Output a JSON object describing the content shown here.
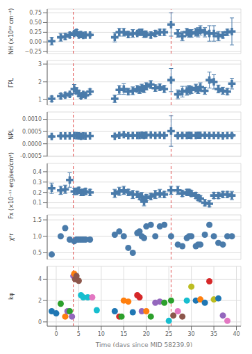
{
  "chart_data": [
    {
      "type": "scatter",
      "ylabel": "NH (×10²² cm⁻²)",
      "marker": "plus",
      "color": "#4a7baa",
      "grid": true,
      "tick_labels": "y",
      "xlim": [
        -2,
        41
      ],
      "xticks": [
        0,
        5,
        10,
        15,
        20,
        25,
        30,
        35,
        40
      ],
      "ylim": [
        -0.3,
        0.85
      ],
      "yticks": [
        {
          "value": -0.25,
          "label": "−0.25"
        },
        {
          "value": 0,
          "label": "0.00"
        },
        0.25,
        {
          "value": 0.5,
          "label": "0.50"
        },
        0.75
      ],
      "vlines": {
        "x": [
          3.8,
          25.5
        ],
        "color": "#e05050",
        "line_style": "dashed"
      },
      "x": [
        -1,
        1,
        2,
        3,
        4,
        4.5,
        5,
        5.5,
        6,
        6.5,
        7.5,
        13,
        14,
        15,
        16,
        17,
        18,
        18.5,
        19,
        19.5,
        20,
        21,
        22,
        23,
        24,
        25.5,
        27,
        28,
        29,
        29.5,
        30,
        31,
        31.5,
        32,
        33,
        34,
        35,
        36,
        37,
        38,
        39
      ],
      "values": [
        0.02,
        0.12,
        0.14,
        0.18,
        0.22,
        0.25,
        0.18,
        0.19,
        0.17,
        0.18,
        0.18,
        0.12,
        0.25,
        0.25,
        0.19,
        0.22,
        0.22,
        0.25,
        0.25,
        0.2,
        0.2,
        0.18,
        0.22,
        0.25,
        0.25,
        0.45,
        0.22,
        0.15,
        0.25,
        0.22,
        0.22,
        0.25,
        0.25,
        0.3,
        0.25,
        0.22,
        0.22,
        0.15,
        0.18,
        0.25,
        0.27
      ],
      "yerr": [
        0.1,
        0.1,
        0.08,
        0.06,
        0.05,
        0.07,
        0.04,
        0.04,
        0.04,
        0.03,
        0.03,
        0.12,
        0.1,
        0.1,
        0.08,
        0.1,
        0.05,
        0.07,
        0.08,
        0.08,
        0.05,
        0.08,
        0.08,
        0.08,
        0.08,
        0.3,
        0.1,
        0.12,
        0.1,
        0.1,
        0.1,
        0.1,
        0.12,
        0.12,
        0.12,
        0.2,
        0.2,
        0.12,
        0.08,
        0.08,
        0.35
      ]
    },
    {
      "type": "scatter",
      "ylabel": "ΓPL",
      "marker": "plus",
      "color": "#4a7baa",
      "grid": true,
      "tick_labels": "y",
      "xlim": [
        -2,
        41
      ],
      "xticks": [
        0,
        5,
        10,
        15,
        20,
        25,
        30,
        35,
        40
      ],
      "ylim": [
        0.7,
        3.2
      ],
      "yticks": [
        1,
        2,
        3
      ],
      "vlines": {
        "x": [
          3.8,
          25.5
        ],
        "color": "#e05050",
        "line_style": "dashed"
      },
      "x": [
        -1,
        1,
        2,
        3,
        4,
        4.5,
        5,
        5.5,
        6,
        6.5,
        7.5,
        13,
        14,
        15,
        16,
        17,
        18,
        18.5,
        19,
        19.5,
        20,
        21,
        22,
        23,
        24,
        25.5,
        27,
        28,
        29,
        29.5,
        30,
        31,
        31.5,
        32,
        33,
        34,
        35,
        36,
        37,
        38,
        39
      ],
      "values": [
        1.05,
        1.2,
        1.25,
        1.3,
        1.6,
        1.5,
        1.35,
        1.2,
        1.3,
        1.25,
        1.45,
        1.05,
        1.55,
        1.6,
        1.45,
        1.5,
        1.6,
        1.55,
        1.65,
        1.6,
        1.75,
        1.85,
        1.65,
        1.7,
        1.6,
        2.1,
        1.3,
        1.45,
        1.5,
        1.55,
        1.55,
        1.65,
        1.55,
        1.7,
        1.5,
        2.1,
        2.0,
        1.6,
        1.5,
        1.45,
        1.9
      ],
      "yerr": [
        0.15,
        0.15,
        0.12,
        0.12,
        0.25,
        0.18,
        0.15,
        0.12,
        0.12,
        0.1,
        0.15,
        0.2,
        0.25,
        0.3,
        0.18,
        0.22,
        0.18,
        0.2,
        0.22,
        0.2,
        0.2,
        0.22,
        0.18,
        0.18,
        0.2,
        0.65,
        0.25,
        0.3,
        0.25,
        0.25,
        0.2,
        0.22,
        0.2,
        0.25,
        0.2,
        0.45,
        0.4,
        0.22,
        0.2,
        0.18,
        0.3
      ]
    },
    {
      "type": "scatter",
      "ylabel": "NPL",
      "marker": "plus",
      "color": "#4a7baa",
      "grid": true,
      "tick_labels": "y",
      "xlim": [
        -2,
        41
      ],
      "xticks": [
        0,
        5,
        10,
        15,
        20,
        25,
        30,
        35,
        40
      ],
      "ylim": [
        -0.00052,
        0.0013
      ],
      "yticks": [
        {
          "value": -0.0005,
          "label": "-0.0005"
        },
        {
          "value": 0,
          "label": "0.0000"
        },
        {
          "value": 0.0005,
          "label": "0.0005"
        },
        {
          "value": 0.001,
          "label": "0.0010"
        }
      ],
      "vlines": {
        "x": [
          3.8,
          25.5
        ],
        "color": "#e05050",
        "line_style": "dashed"
      },
      "x": [
        -1,
        1,
        2,
        3,
        4,
        4.5,
        5,
        5.5,
        6,
        6.5,
        7.5,
        13,
        14,
        15,
        16,
        17,
        18,
        18.5,
        19,
        19.5,
        20,
        21,
        22,
        23,
        24,
        25.5,
        27,
        28,
        29,
        29.5,
        30,
        31,
        31.5,
        32,
        33,
        34,
        35,
        36,
        37,
        38,
        39
      ],
      "values": [
        0.0003,
        0.00032,
        0.00032,
        0.00032,
        0.000335,
        0.00033,
        0.000325,
        0.00031,
        0.00032,
        0.000315,
        0.00032,
        0.00031,
        0.000345,
        0.00037,
        0.00033,
        0.00034,
        0.00034,
        0.00034,
        0.00035,
        0.00034,
        0.00035,
        0.000355,
        0.00034,
        0.00035,
        0.00034,
        0.00052,
        0.00033,
        0.00034,
        0.00034,
        0.000345,
        0.00034,
        0.00034,
        0.000345,
        0.000345,
        0.000345,
        0.00034,
        0.000335,
        0.00034,
        0.00032,
        0.000335,
        0.00034
      ],
      "yerr": [
        5e-05,
        4e-05,
        3.5e-05,
        3e-05,
        3.5e-05,
        3e-05,
        2.5e-05,
        2.5e-05,
        2.5e-05,
        2.5e-05,
        2.5e-05,
        4.5e-05,
        4e-05,
        5e-05,
        3.5e-05,
        4.5e-05,
        3.5e-05,
        4e-05,
        4e-05,
        3.5e-05,
        3.5e-05,
        4e-05,
        3.5e-05,
        4e-05,
        4e-05,
        0.00062,
        5e-05,
        5.5e-05,
        5e-05,
        5e-05,
        4.5e-05,
        4.5e-05,
        5e-05,
        5e-05,
        5e-05,
        5e-05,
        4.5e-05,
        4.5e-05,
        4e-05,
        4e-05,
        6e-05
      ]
    },
    {
      "type": "scatter",
      "ylabel": "Fx (×10⁻¹¹ erg/sec/cm²)",
      "marker": "plus",
      "color": "#4a7baa",
      "grid": true,
      "tick_labels": "y",
      "xlim": [
        -2,
        41
      ],
      "xticks": [
        0,
        5,
        10,
        15,
        20,
        25,
        30,
        35,
        40
      ],
      "ylim": [
        0.05,
        0.48
      ],
      "yticks": [
        0.1,
        0.2,
        0.3,
        0.4
      ],
      "vlines": {
        "x": [
          3.8,
          25.5
        ],
        "color": "#e05050",
        "line_style": "dashed"
      },
      "x": [
        -1,
        1,
        2,
        3,
        4,
        4.5,
        5,
        5.5,
        6,
        6.5,
        7.5,
        13,
        14,
        15,
        16,
        17,
        18,
        18.5,
        19,
        19.5,
        20,
        21,
        22,
        23,
        24,
        25.5,
        27,
        28,
        29,
        29.5,
        30,
        31,
        31.5,
        32,
        33,
        34,
        35,
        36,
        37,
        38,
        39
      ],
      "values": [
        0.24,
        0.22,
        0.23,
        0.32,
        0.21,
        0.21,
        0.22,
        0.2,
        0.2,
        0.21,
        0.2,
        0.19,
        0.21,
        0.22,
        0.2,
        0.18,
        0.18,
        0.16,
        0.16,
        0.11,
        0.15,
        0.16,
        0.18,
        0.19,
        0.18,
        0.22,
        0.22,
        0.19,
        0.2,
        0.2,
        0.19,
        0.17,
        0.15,
        0.14,
        0.1,
        0.09,
        0.17,
        0.17,
        0.18,
        0.18,
        0.17
      ],
      "yerr": [
        0.05,
        0.04,
        0.04,
        0.07,
        0.03,
        0.03,
        0.03,
        0.03,
        0.03,
        0.03,
        0.03,
        0.04,
        0.04,
        0.04,
        0.03,
        0.04,
        0.03,
        0.03,
        0.04,
        0.04,
        0.03,
        0.03,
        0.04,
        0.04,
        0.03,
        0.04,
        0.04,
        0.03,
        0.03,
        0.03,
        0.03,
        0.03,
        0.03,
        0.03,
        0.03,
        0.03,
        0.03,
        0.03,
        0.03,
        0.03,
        0.04
      ]
    },
    {
      "type": "scatter",
      "ylabel": "χ²r",
      "marker": "circle",
      "color": "#4a7baa",
      "grid": true,
      "tick_labels": "y",
      "xlim": [
        -2,
        41
      ],
      "xticks": [
        0,
        5,
        10,
        15,
        20,
        25,
        30,
        35,
        40
      ],
      "ylim": [
        0.3,
        1.65
      ],
      "yticks": [
        0.5,
        {
          "value": 1.0,
          "label": "1.0"
        },
        1.5
      ],
      "vlines": {
        "x": [
          3.8,
          25.5
        ],
        "color": "#e05050",
        "line_style": "dashed"
      },
      "x": [
        -1,
        1,
        2,
        3,
        4,
        4.5,
        5,
        5.5,
        6,
        6.5,
        7.5,
        13,
        14,
        15,
        16,
        17,
        18,
        18.5,
        19,
        19.5,
        20,
        21,
        22,
        23,
        24,
        25.5,
        27,
        28,
        29,
        29.5,
        30,
        31,
        31.5,
        32,
        33,
        34,
        35,
        36,
        37,
        38,
        39
      ],
      "values": [
        0.45,
        1.0,
        1.25,
        0.9,
        0.85,
        0.9,
        0.9,
        0.9,
        0.9,
        0.9,
        0.9,
        1.05,
        1.15,
        1.0,
        0.65,
        0.5,
        1.1,
        1.15,
        1.0,
        0.95,
        1.3,
        1.35,
        1.0,
        1.3,
        1.35,
        1.0,
        0.75,
        0.7,
        0.95,
        1.0,
        1.0,
        0.7,
        0.75,
        0.75,
        1.05,
        1.35,
        1.0,
        0.8,
        0.75,
        1.0,
        1.0
      ]
    },
    {
      "type": "scatter",
      "ylabel": "kφ",
      "xlabel": "Time (days since MID 58239.9)",
      "marker": "circle",
      "grid": true,
      "xlim": [
        -2,
        41
      ],
      "xticks": [
        0,
        5,
        10,
        15,
        20,
        25,
        30,
        35,
        40
      ],
      "ylim": [
        -0.4,
        5.2
      ],
      "yticks": [
        0,
        2,
        4
      ],
      "vlines": {
        "x": [
          3.8,
          25.5
        ],
        "color": "#e05050",
        "line_style": "dashed"
      },
      "x": [
        -1,
        0,
        1,
        2,
        2.5,
        3,
        3.5,
        3.8,
        4.0,
        4.2,
        4.5,
        5,
        5.5,
        6,
        7,
        8,
        9,
        13,
        14,
        14.5,
        15,
        16,
        17,
        18,
        18.5,
        19,
        20,
        21,
        22,
        23,
        24,
        25,
        25.5,
        26,
        27,
        28,
        29,
        30,
        31,
        32,
        33,
        34,
        35,
        36,
        37,
        38
      ],
      "values": [
        1.0,
        0.8,
        1.7,
        0.5,
        1.0,
        1.0,
        0.5,
        4.3,
        4.5,
        4.0,
        4.3,
        3.85,
        2.5,
        2.3,
        2.3,
        2.3,
        1.1,
        1.0,
        0.5,
        0.5,
        2.0,
        1.9,
        0.9,
        2.5,
        2.3,
        1.0,
        1.0,
        0.5,
        1.8,
        1.9,
        1.8,
        0.1,
        2.0,
        0.6,
        1.0,
        0.5,
        2.0,
        3.3,
        2.0,
        2.1,
        1.8,
        3.8,
        2.1,
        2.2,
        0.6,
        0.1
      ],
      "colors": [
        "#1f77b4",
        "#1f77b4",
        "#2ca02c",
        "#ff7f0e",
        "#9467bd",
        "#2ca02c",
        "#9467bd",
        "#9467bd",
        "#ff7f0e",
        "#8c564b",
        "#8c564b",
        "#8c564b",
        "#17becf",
        "#17becf",
        "#17becf",
        "#e377c2",
        "#17becf",
        "#1f77b4",
        "#d62728",
        "#2ca02c",
        "#ff7f0e",
        "#ff7f0e",
        "#1f77b4",
        "#d62728",
        "#d62728",
        "#9467bd",
        "#ff7f0e",
        "#2ca02c",
        "#9467bd",
        "#9467bd",
        "#2ca02c",
        "#17becf",
        "#2ca02c",
        "#8c564b",
        "#e377c2",
        "#8c564b",
        "#17becf",
        "#bcbd22",
        "#1f77b4",
        "#ff7f0e",
        "#1f77b4",
        "#d62728",
        "#bcbd22",
        "#1f77b4",
        "#9467bd",
        "#e377c2"
      ]
    }
  ]
}
